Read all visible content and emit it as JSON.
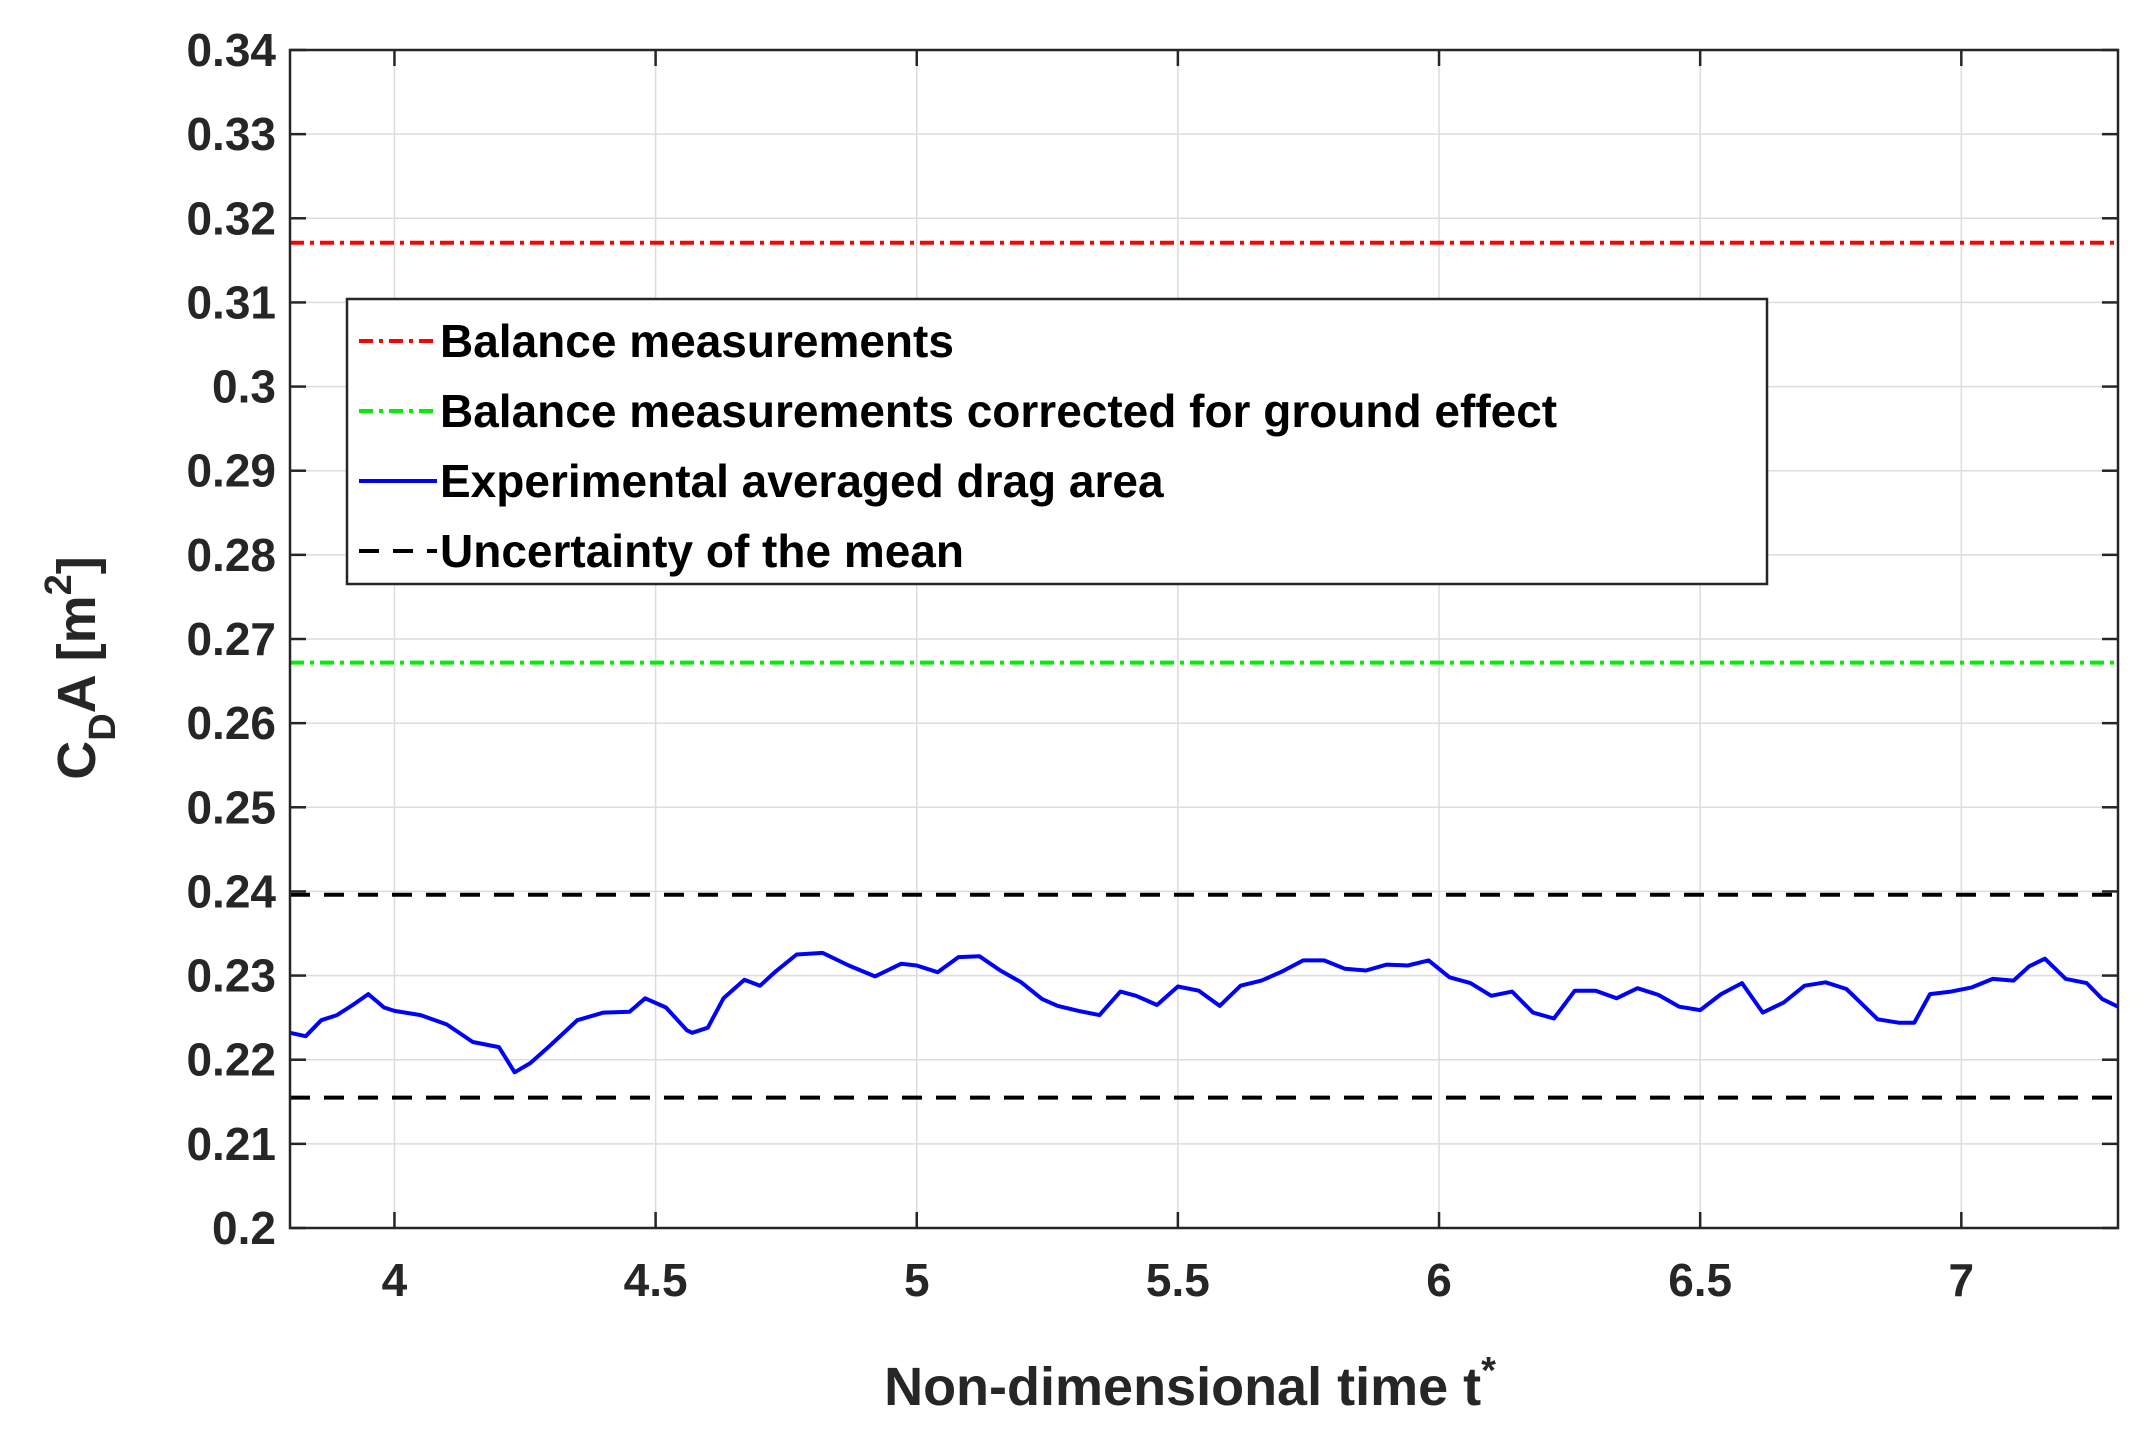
{
  "chart_data": {
    "type": "line",
    "title": "",
    "xlabel": "Non-dimensional time t",
    "xlabel_superscript": "*",
    "ylabel_parts": {
      "c": "C",
      "sub": "D",
      "a": "A [m",
      "sup": "2",
      "close": "]"
    },
    "xlim": [
      3.8,
      7.3
    ],
    "ylim": [
      0.2,
      0.34
    ],
    "grid": true,
    "x_ticks": [
      4,
      4.5,
      5,
      5.5,
      6,
      6.5,
      7
    ],
    "x_tick_labels": [
      "4",
      "4.5",
      "5",
      "5.5",
      "6",
      "6.5",
      "7"
    ],
    "y_ticks": [
      0.2,
      0.21,
      0.22,
      0.23,
      0.24,
      0.25,
      0.26,
      0.27,
      0.28,
      0.29,
      0.3,
      0.31,
      0.32,
      0.33,
      0.34
    ],
    "y_tick_labels": [
      "0.2",
      "0.21",
      "0.22",
      "0.23",
      "0.24",
      "0.25",
      "0.26",
      "0.27",
      "0.28",
      "0.29",
      "0.3",
      "0.31",
      "0.32",
      "0.33",
      "0.34"
    ],
    "legend_position": "upper-left",
    "series": [
      {
        "name": "Balance measurements",
        "style": "dash-dot",
        "color": "#ff0000",
        "x": [
          3.8,
          7.3
        ],
        "y": [
          0.3171,
          0.3171
        ]
      },
      {
        "name": "Balance measurements corrected for ground effect",
        "style": "dash-dot",
        "color": "#00ee00",
        "x": [
          3.8,
          7.3
        ],
        "y": [
          0.2672,
          0.2672
        ]
      },
      {
        "name": "Experimental averaged drag area",
        "style": "solid",
        "color": "#0000ff",
        "x": [
          3.8,
          3.83,
          3.86,
          3.89,
          3.92,
          3.95,
          3.98,
          4.0,
          4.05,
          4.1,
          4.15,
          4.2,
          4.23,
          4.26,
          4.3,
          4.35,
          4.4,
          4.45,
          4.48,
          4.52,
          4.56,
          4.57,
          4.6,
          4.63,
          4.67,
          4.7,
          4.73,
          4.77,
          4.82,
          4.87,
          4.92,
          4.97,
          5.0,
          5.04,
          5.08,
          5.12,
          5.16,
          5.2,
          5.24,
          5.27,
          5.31,
          5.35,
          5.39,
          5.42,
          5.46,
          5.5,
          5.54,
          5.58,
          5.62,
          5.66,
          5.7,
          5.74,
          5.78,
          5.82,
          5.86,
          5.9,
          5.94,
          5.98,
          6.02,
          6.06,
          6.1,
          6.14,
          6.18,
          6.22,
          6.26,
          6.3,
          6.34,
          6.38,
          6.42,
          6.46,
          6.5,
          6.54,
          6.58,
          6.62,
          6.66,
          6.7,
          6.74,
          6.78,
          6.8,
          6.84,
          6.88,
          6.91,
          6.94,
          6.98,
          7.02,
          7.06,
          7.1,
          7.13,
          7.16,
          7.2,
          7.24,
          7.27,
          7.3
        ],
        "y": [
          0.2232,
          0.2228,
          0.2247,
          0.2253,
          0.2265,
          0.2278,
          0.2262,
          0.2258,
          0.2253,
          0.2242,
          0.2221,
          0.2215,
          0.2185,
          0.2196,
          0.2218,
          0.2247,
          0.2256,
          0.2257,
          0.2273,
          0.2262,
          0.2235,
          0.2232,
          0.2238,
          0.2273,
          0.2295,
          0.2288,
          0.2305,
          0.2325,
          0.2327,
          0.2312,
          0.2299,
          0.2314,
          0.2312,
          0.2304,
          0.2322,
          0.2323,
          0.2306,
          0.2292,
          0.2272,
          0.2264,
          0.2258,
          0.2253,
          0.2281,
          0.2276,
          0.2265,
          0.2287,
          0.2282,
          0.2264,
          0.2288,
          0.2294,
          0.2305,
          0.2318,
          0.2318,
          0.2308,
          0.2306,
          0.2313,
          0.2312,
          0.2318,
          0.2298,
          0.2291,
          0.2276,
          0.2281,
          0.2256,
          0.2249,
          0.2282,
          0.2282,
          0.2273,
          0.2285,
          0.2277,
          0.2263,
          0.2259,
          0.2278,
          0.2291,
          0.2256,
          0.2268,
          0.2288,
          0.2292,
          0.2284,
          0.2272,
          0.2248,
          0.2244,
          0.2244,
          0.2278,
          0.2281,
          0.2286,
          0.2296,
          0.2294,
          0.2311,
          0.232,
          0.2296,
          0.2291,
          0.2272,
          0.2263
        ]
      },
      {
        "name": "Uncertainty of the mean",
        "style": "dashed",
        "color": "#000000",
        "x": [
          3.8,
          7.3
        ],
        "y": [
          0.2396,
          0.2396
        ]
      },
      {
        "name": "Uncertainty of the mean (lower)",
        "style": "dashed",
        "color": "#000000",
        "x": [
          3.8,
          7.3
        ],
        "y": [
          0.2155,
          0.2155
        ],
        "in_legend": false
      }
    ],
    "legend": [
      "Balance measurements",
      "Balance measurements corrected for ground effect",
      "Experimental averaged drag area",
      "Uncertainty of the mean"
    ]
  }
}
